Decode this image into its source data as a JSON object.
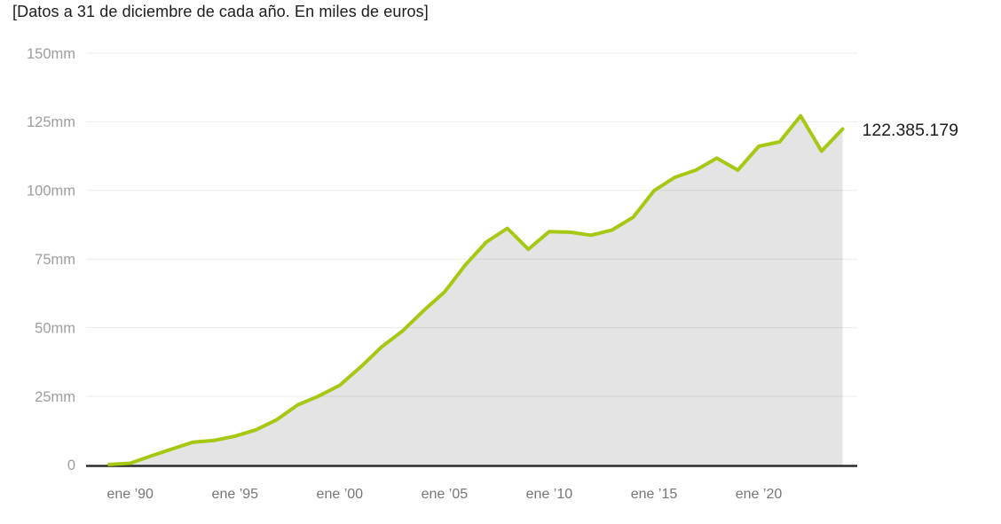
{
  "header": {
    "subtitle": "[Datos a 31 de diciembre de cada año. En miles de euros]"
  },
  "colors": {
    "background": "#ffffff",
    "line": "#a5c813",
    "area": "#e4e4e4",
    "grid": "rgba(0,0,0,0.08)",
    "axis": "#2b2b2b",
    "subtitle_text": "#1d1d1d",
    "end_label_text": "#1d1d1d",
    "y_tick_text": "#9d9d9d",
    "x_tick_text": "#767676"
  },
  "chart_data": {
    "type": "area",
    "title": "[Datos a 31 de diciembre de cada año. En miles de euros]",
    "unit": "miles de euros",
    "point_interval": "anual (valor a 31 de diciembre, dibujado en enero siguiente)",
    "x_years": [
      1989,
      1990,
      1991,
      1992,
      1993,
      1994,
      1995,
      1996,
      1997,
      1998,
      1999,
      2000,
      2001,
      2002,
      2003,
      2004,
      2005,
      2006,
      2007,
      2008,
      2009,
      2010,
      2011,
      2012,
      2013,
      2014,
      2015,
      2016,
      2017,
      2018,
      2019,
      2020,
      2021,
      2022,
      2023,
      2024
    ],
    "values_miles_euros": [
      150000,
      600000,
      3300000,
      5800000,
      8300000,
      8900000,
      10500000,
      12800000,
      16500000,
      21900000,
      25100000,
      29000000,
      35700000,
      43000000,
      48800000,
      56200000,
      63000000,
      72900000,
      81200000,
      86200000,
      78600000,
      85000000,
      84800000,
      83700000,
      85600000,
      90200000,
      99900000,
      104800000,
      107400000,
      111800000,
      107400000,
      116100000,
      117700000,
      127200000,
      114300000,
      122385179
    ],
    "end_label": "122.385.179",
    "y_ticks": [
      {
        "label": "150mm",
        "mm": 150
      },
      {
        "label": "125mm",
        "mm": 125
      },
      {
        "label": "100mm",
        "mm": 100
      },
      {
        "label": "75mm",
        "mm": 75
      },
      {
        "label": "50mm",
        "mm": 50
      },
      {
        "label": "25mm",
        "mm": 25
      },
      {
        "label": "0",
        "mm": 0
      }
    ],
    "x_ticks": [
      {
        "label": "ene ’90",
        "year": 1990
      },
      {
        "label": "ene ’95",
        "year": 1995
      },
      {
        "label": "ene ’00",
        "year": 2000
      },
      {
        "label": "ene ’05",
        "year": 2005
      },
      {
        "label": "ene ’10",
        "year": 2010
      },
      {
        "label": "ene ’15",
        "year": 2015
      },
      {
        "label": "ene ’20",
        "year": 2020
      }
    ],
    "ylim_mm": [
      0,
      150
    ],
    "grid": true,
    "legend": false
  }
}
